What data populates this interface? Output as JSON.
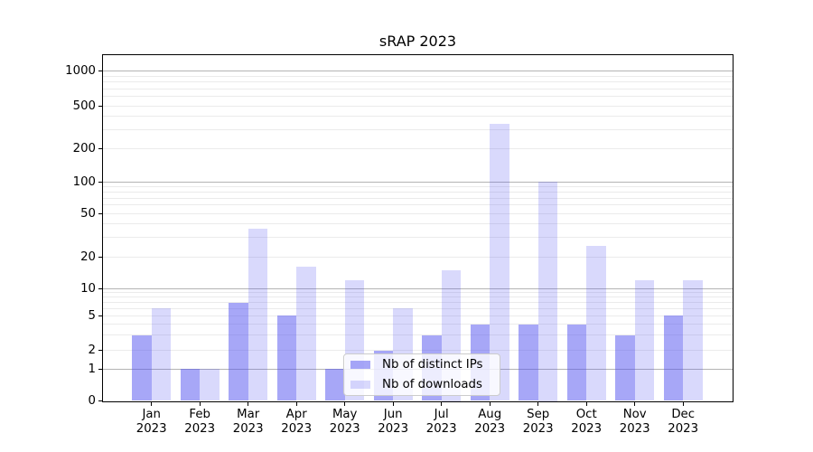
{
  "figure_title": "sRAP 2023",
  "chart_data": {
    "type": "bar",
    "title": "sRAP 2023",
    "categories": [
      "Jan",
      "Feb",
      "Mar",
      "Apr",
      "May",
      "Jun",
      "Jul",
      "Aug",
      "Sep",
      "Oct",
      "Nov",
      "Dec"
    ],
    "category_year_label": "2023",
    "series": [
      {
        "name": "Nb of distinct IPs",
        "color": "rgba(80,80,240,0.5)",
        "values": [
          3,
          1,
          7,
          5,
          1,
          2,
          3,
          4,
          4,
          4,
          3,
          5
        ]
      },
      {
        "name": "Nb of downloads",
        "color": "rgba(80,80,240,0.22)",
        "values": [
          6,
          1,
          36,
          16,
          12,
          6,
          15,
          340,
          100,
          25,
          12,
          12
        ]
      }
    ],
    "y_axis": {
      "scale": "symlog",
      "tick_labels": [
        "0",
        "1",
        "2",
        "5",
        "10",
        "20",
        "50",
        "100",
        "200",
        "500",
        "1000"
      ],
      "ticks": [
        0,
        1,
        2,
        5,
        10,
        20,
        50,
        100,
        200,
        500,
        1000
      ],
      "ylim": [
        0,
        1400
      ]
    },
    "xlabel": "",
    "ylabel": "",
    "grid": "horizontal, major and minor",
    "legend_position": "lower center inside plot"
  },
  "colors": {
    "bar_distinct_ips": "rgba(80,80,240,0.5)",
    "bar_downloads": "rgba(80,80,240,0.22)",
    "grid_major": "#b4b4b4",
    "grid_minor": "#ebebeb",
    "spine": "#000000",
    "legend_border": "#cccccc",
    "text": "#000000"
  }
}
